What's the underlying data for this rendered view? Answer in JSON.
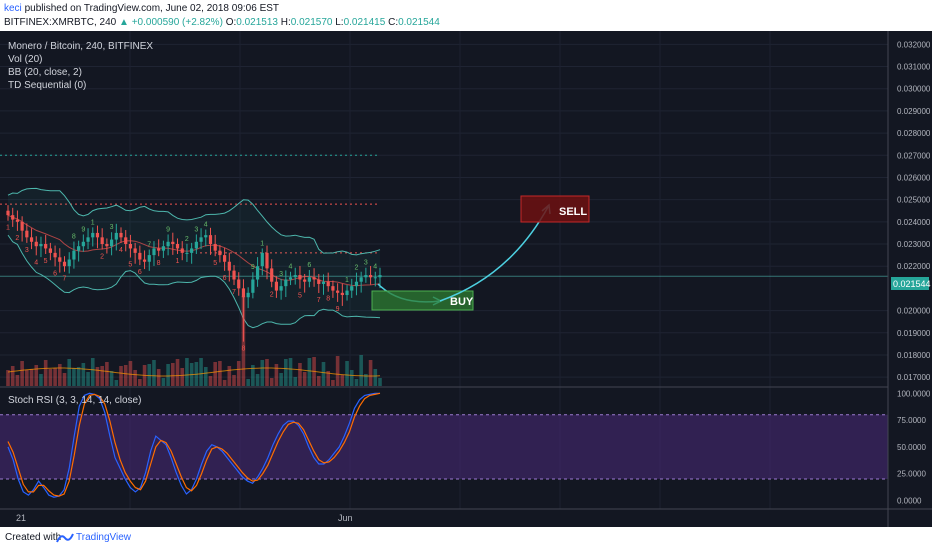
{
  "header": {
    "author": "keci",
    "published_text": "published on TradingView.com, June 02, 2018 09:06 EST",
    "symbol_text": "BITFINEX:XMRBTC, 240",
    "change_text": "+0.000590 (+2.82%)",
    "ohlc": {
      "o_label": "O:",
      "o_value": "0.021513",
      "h_label": "H:",
      "h_value": "0.021570",
      "l_label": "L:",
      "l_value": "0.021415",
      "c_label": "C:",
      "c_value": "0.021544"
    }
  },
  "legend": {
    "title": "Monero / Bitcoin, 240, BITFINEX",
    "vol": "Vol (20)",
    "bb": "BB (20, close, 2)",
    "td": "TD Sequential (0)",
    "stoch": "Stoch RSI (3, 3, 14, 14, close)"
  },
  "annotations": {
    "buy_label": "BUY",
    "sell_label": "SELL",
    "price_tag": "0.021544"
  },
  "footer": {
    "created_with": "Created with",
    "brand": "TradingView"
  },
  "colors": {
    "background": "#131722",
    "up": "#26a69a",
    "down": "#ef5350",
    "bb": "#4db6ac",
    "stoch_k": "#2962ff",
    "stoch_d": "#ff6d00",
    "stoch_band": "#4a2a7a",
    "arrow": "#4dd0e1"
  },
  "chart_data": [
    {
      "type": "candlestick",
      "title": "Monero / Bitcoin, 240, BITFINEX",
      "ylim": [
        0.0166,
        0.0326
      ],
      "y_ticks": [
        "0.032000",
        "0.031000",
        "0.030000",
        "0.029000",
        "0.028000",
        "0.027000",
        "0.026000",
        "0.025000",
        "0.024000",
        "0.023000",
        "0.022000",
        "0.020000",
        "0.019000",
        "0.018000",
        "0.017000"
      ],
      "x_ticks": [
        "21",
        "Jun"
      ],
      "last_price": 0.021544,
      "series": [
        {
          "name": "Close",
          "values": [
            0.0243,
            0.0241,
            0.024,
            0.0236,
            0.0233,
            0.0231,
            0.0229,
            0.023,
            0.0228,
            0.0226,
            0.0224,
            0.0222,
            0.022,
            0.0223,
            0.0227,
            0.0229,
            0.0231,
            0.0233,
            0.0235,
            0.0233,
            0.023,
            0.0229,
            0.0232,
            0.0235,
            0.0233,
            0.023,
            0.0228,
            0.0226,
            0.0223,
            0.0222,
            0.0225,
            0.0228,
            0.0227,
            0.0229,
            0.0231,
            0.023,
            0.0228,
            0.0226,
            0.0226,
            0.0228,
            0.0231,
            0.0233,
            0.0234,
            0.023,
            0.0227,
            0.0225,
            0.0222,
            0.0218,
            0.0214,
            0.021,
            0.0206,
            0.0208,
            0.0214,
            0.022,
            0.0226,
            0.0219,
            0.0213,
            0.0209,
            0.0211,
            0.0214,
            0.0215,
            0.0216,
            0.0214,
            0.0213,
            0.0215,
            0.0214,
            0.0212,
            0.0213,
            0.0211,
            0.0209,
            0.0208,
            0.0207,
            0.0209,
            0.0211,
            0.0213,
            0.0215,
            0.0216,
            0.0215,
            0.0215,
            0.0216
          ]
        }
      ],
      "annotations": [
        {
          "text": "BUY",
          "price_range": [
            0.0203,
            0.0215
          ]
        },
        {
          "text": "SELL",
          "price_range": [
            0.024,
            0.0255
          ]
        }
      ]
    },
    {
      "type": "bar",
      "title": "Vol (20)"
    },
    {
      "type": "line",
      "title": "Stoch RSI (3, 3, 14, 14, close)",
      "ylim": [
        -8,
        104
      ],
      "y_ticks": [
        "100.0000",
        "75.0000",
        "50.0000",
        "25.0000",
        "0.0000"
      ],
      "band": [
        20,
        80
      ],
      "series": [
        {
          "name": "K",
          "values": [
            50,
            38,
            20,
            8,
            5,
            10,
            18,
            12,
            5,
            3,
            4,
            10,
            30,
            60,
            88,
            98,
            100,
            99,
            95,
            82,
            60,
            40,
            30,
            20,
            12,
            8,
            12,
            26,
            46,
            60,
            56,
            52,
            40,
            26,
            14,
            6,
            10,
            20,
            34,
            46,
            52,
            50,
            46,
            40,
            34,
            28,
            22,
            18,
            16,
            22,
            30,
            40,
            52,
            62,
            70,
            74,
            74,
            70,
            62,
            50,
            40,
            34,
            34,
            38,
            44,
            50,
            60,
            72,
            86,
            94,
            98,
            99,
            100,
            100
          ]
        },
        {
          "name": "D",
          "values": [
            55,
            45,
            30,
            15,
            8,
            8,
            14,
            14,
            9,
            5,
            4,
            6,
            18,
            42,
            70,
            90,
            98,
            99,
            97,
            90,
            74,
            54,
            38,
            26,
            18,
            12,
            10,
            18,
            34,
            50,
            56,
            54,
            46,
            34,
            22,
            12,
            9,
            14,
            25,
            38,
            48,
            50,
            48,
            44,
            38,
            32,
            26,
            21,
            18,
            19,
            25,
            33,
            44,
            55,
            64,
            71,
            73,
            72,
            66,
            56,
            46,
            38,
            35,
            36,
            40,
            46,
            54,
            64,
            78,
            88,
            95,
            98,
            99,
            100
          ]
        }
      ]
    }
  ]
}
